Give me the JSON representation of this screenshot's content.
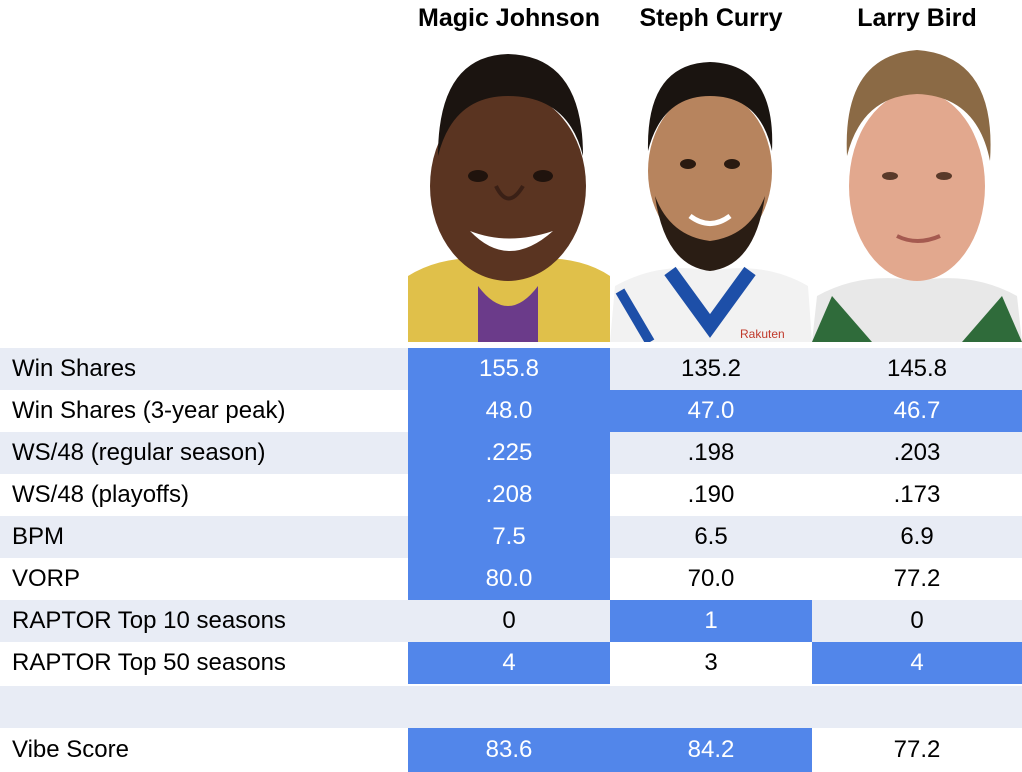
{
  "players": [
    "Magic Johnson",
    "Steph Curry",
    "Larry Bird"
  ],
  "photos": [
    "magic-johnson-portrait",
    "steph-curry-portrait",
    "larry-bird-portrait"
  ],
  "colors": {
    "highlight": "#5286ea",
    "band": "#e8ecf5"
  },
  "rows": [
    {
      "label": "Win Shares",
      "values": [
        "155.8",
        "135.2",
        "145.8"
      ],
      "highlight": [
        true,
        false,
        false
      ]
    },
    {
      "label": "Win Shares (3-year peak)",
      "values": [
        "48.0",
        "47.0",
        "46.7"
      ],
      "highlight": [
        true,
        true,
        true
      ]
    },
    {
      "label": "WS/48 (regular season)",
      "values": [
        ".225",
        ".198",
        ".203"
      ],
      "highlight": [
        true,
        false,
        false
      ]
    },
    {
      "label": "WS/48 (playoffs)",
      "values": [
        ".208",
        ".190",
        ".173"
      ],
      "highlight": [
        true,
        false,
        false
      ]
    },
    {
      "label": "BPM",
      "values": [
        "7.5",
        "6.5",
        "6.9"
      ],
      "highlight": [
        true,
        false,
        false
      ]
    },
    {
      "label": "VORP",
      "values": [
        "80.0",
        "70.0",
        "77.2"
      ],
      "highlight": [
        true,
        false,
        false
      ]
    },
    {
      "label": "RAPTOR Top 10 seasons",
      "values": [
        "0",
        "1",
        "0"
      ],
      "highlight": [
        false,
        true,
        false
      ]
    },
    {
      "label": "RAPTOR Top 50 seasons",
      "values": [
        "4",
        "3",
        "4"
      ],
      "highlight": [
        true,
        false,
        true
      ]
    }
  ],
  "vibe": {
    "label": "Vibe Score",
    "values": [
      "83.6",
      "84.2",
      "77.2"
    ],
    "highlight": [
      true,
      true,
      false
    ]
  }
}
